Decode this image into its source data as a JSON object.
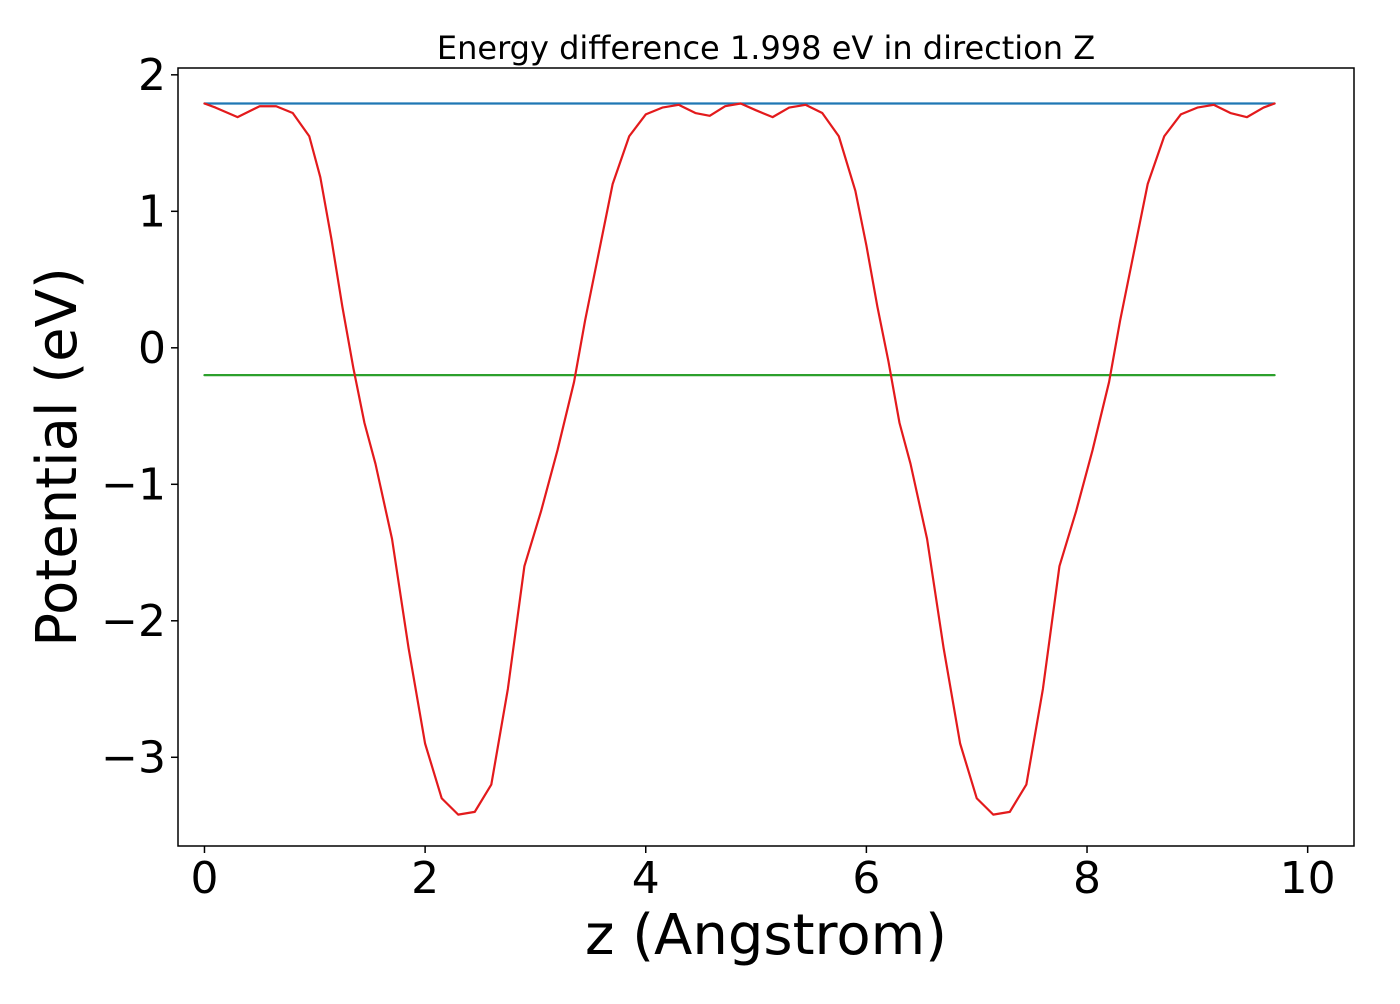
{
  "chart_data": {
    "type": "line",
    "title": "Energy difference 1.998 eV in direction Z",
    "xlabel": "z (Angstrom)",
    "ylabel": "Potential (eV)",
    "xlim": [
      -0.24,
      10.42
    ],
    "ylim": [
      -3.65,
      2.05
    ],
    "x_ticks": [
      0,
      2,
      4,
      6,
      8,
      10
    ],
    "x_tick_labels": [
      "0",
      "2",
      "4",
      "6",
      "8",
      "10"
    ],
    "y_ticks": [
      -3,
      -2,
      -1,
      0,
      1,
      2
    ],
    "y_tick_labels": [
      "−3",
      "−2",
      "−1",
      "0",
      "1",
      "2"
    ],
    "grid": false,
    "legend": "none",
    "colors": {
      "potential": "#e31a1c",
      "upper_level": "#1f77b4",
      "lower_level": "#2ca02c",
      "axes": "#000000"
    },
    "series": [
      {
        "values_x": [
          0.0,
          0.1,
          0.3,
          0.5,
          0.65,
          0.8,
          0.95,
          1.05,
          1.15,
          1.25,
          1.35,
          1.45,
          1.55,
          1.7,
          1.85,
          2.0,
          2.15,
          2.3,
          2.45,
          2.6,
          2.75,
          2.9,
          3.05,
          3.2,
          3.35,
          3.45,
          3.55,
          3.7,
          3.85,
          4.0,
          4.15,
          4.3,
          4.45,
          4.58,
          4.72,
          4.86,
          5.0,
          5.15,
          5.3,
          5.45,
          5.6,
          5.75,
          5.9,
          6.0,
          6.1,
          6.2,
          6.3,
          6.4,
          6.55,
          6.7,
          6.85,
          7.0,
          7.15,
          7.3,
          7.45,
          7.6,
          7.75,
          7.9,
          8.05,
          8.2,
          8.3,
          8.4,
          8.55,
          8.7,
          8.85,
          9.0,
          9.15,
          9.3,
          9.45,
          9.6,
          9.7
        ],
        "values_y": [
          1.79,
          1.76,
          1.69,
          1.77,
          1.77,
          1.72,
          1.55,
          1.25,
          0.8,
          0.3,
          -0.15,
          -0.55,
          -0.85,
          -1.4,
          -2.2,
          -2.9,
          -3.3,
          -3.42,
          -3.4,
          -3.2,
          -2.5,
          -1.6,
          -1.2,
          -0.75,
          -0.25,
          0.2,
          0.6,
          1.2,
          1.55,
          1.71,
          1.76,
          1.78,
          1.72,
          1.7,
          1.77,
          1.79,
          1.74,
          1.69,
          1.76,
          1.78,
          1.72,
          1.55,
          1.15,
          0.75,
          0.3,
          -0.1,
          -0.55,
          -0.85,
          -1.4,
          -2.2,
          -2.9,
          -3.3,
          -3.42,
          -3.4,
          -3.2,
          -2.5,
          -1.6,
          -1.2,
          -0.75,
          -0.25,
          0.2,
          0.6,
          1.2,
          1.55,
          1.71,
          1.76,
          1.78,
          1.72,
          1.69,
          1.76,
          1.79
        ]
      },
      {
        "values_x": [
          0.0,
          9.7
        ],
        "values_y": [
          1.79,
          1.79
        ]
      },
      {
        "values_x": [
          0.0,
          9.7
        ],
        "values_y": [
          -0.2,
          -0.2
        ]
      }
    ]
  }
}
